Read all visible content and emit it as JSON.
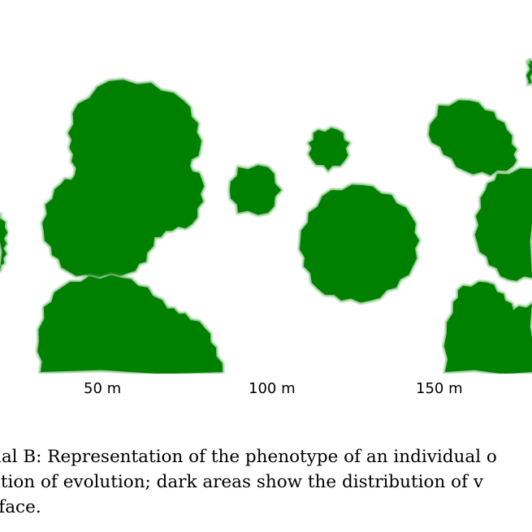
{
  "figure": {
    "fill_color": "#008000",
    "edge_color": "#7fbf7f",
    "scale_labels": [
      "50 m",
      "100 m",
      "150 m"
    ]
  },
  "caption": {
    "lines": [
      "ual B: Representation of the phenotype of an individual o",
      "ation of evolution; dark areas show the distribution of v",
      "rface."
    ]
  }
}
